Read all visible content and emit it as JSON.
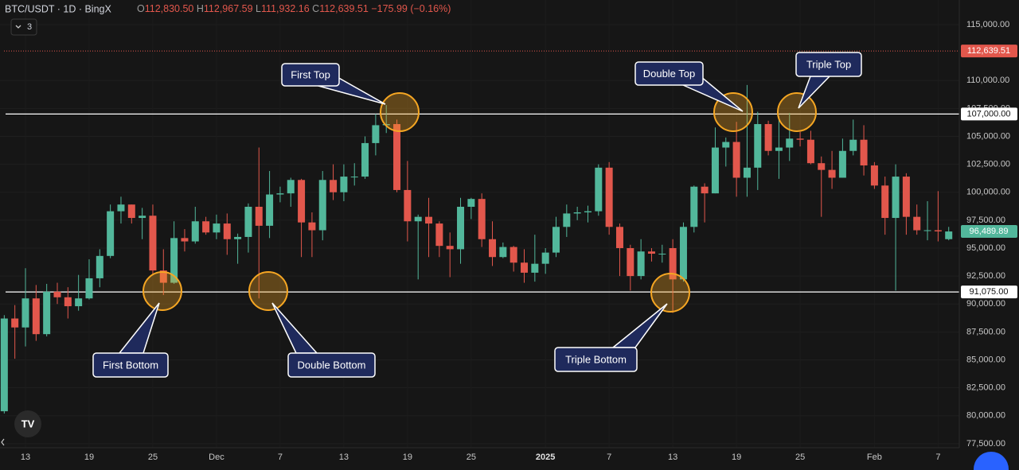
{
  "header": {
    "symbol": "BTC/USDT · 1D · BingX",
    "ohlc": [
      {
        "key": "O",
        "value": "112,830.50"
      },
      {
        "key": "H",
        "value": "112,967.59"
      },
      {
        "key": "L",
        "value": "111,932.16"
      },
      {
        "key": "C",
        "value": "112,639.51"
      }
    ],
    "change": "−175.99 (−0.16%)",
    "indicators": "3"
  },
  "chart_data": {
    "type": "candlestick",
    "up_color": "#52b79b",
    "down_color": "#e2574c",
    "categories": [
      null,
      null,
      "13",
      null,
      null,
      null,
      null,
      null,
      "19",
      null,
      null,
      null,
      null,
      null,
      "25",
      null,
      null,
      null,
      null,
      null,
      "Dec",
      null,
      null,
      null,
      null,
      null,
      "7",
      null,
      null,
      null,
      null,
      null,
      "13",
      null,
      null,
      null,
      null,
      null,
      "19",
      null,
      null,
      null,
      null,
      null,
      "25",
      null,
      null,
      null,
      null,
      null,
      null,
      "2025",
      null,
      null,
      null,
      null,
      null,
      "7",
      null,
      null,
      null,
      null,
      null,
      "13",
      null,
      null,
      null,
      null,
      null,
      "19",
      null,
      null,
      null,
      null,
      null,
      "25",
      null,
      null,
      null,
      null,
      null,
      null,
      "Feb",
      null,
      null,
      null,
      null,
      null,
      "7",
      null
    ],
    "open": [
      80400,
      88700,
      87900,
      90500,
      87300,
      91100,
      90600,
      89800,
      90500,
      92300,
      94300,
      98300,
      98900,
      97700,
      97900,
      93000,
      91900,
      95900,
      95600,
      97400,
      96400,
      97200,
      95800,
      96000,
      98700,
      97000,
      99800,
      99900,
      101100,
      97300,
      96600,
      101100,
      100000,
      101400,
      101400,
      104400,
      106000,
      106100,
      100200,
      97400,
      97800,
      97200,
      95200,
      94900,
      98700,
      99400,
      95800,
      94200,
      95100,
      93700,
      92800,
      93600,
      94600,
      96900,
      98100,
      98200,
      98300,
      102200,
      96900,
      95000,
      92500,
      94700,
      94500,
      95000,
      92200,
      96900,
      100500,
      99900,
      104000,
      104500,
      101300,
      102200,
      106100,
      103700,
      104000,
      104800,
      104700,
      102600,
      102000,
      101300,
      103700,
      104700,
      102400,
      100600,
      97700,
      101400,
      97800,
      96600,
      96600,
      95800
    ],
    "high": [
      89000,
      89900,
      93200,
      91700,
      91800,
      91900,
      91500,
      92600,
      94000,
      94900,
      98900,
      99600,
      98900,
      98600,
      98900,
      94900,
      97400,
      96700,
      98700,
      97800,
      98000,
      98100,
      96300,
      99000,
      104000,
      101900,
      100500,
      101300,
      101200,
      98200,
      101900,
      102500,
      102500,
      102600,
      105000,
      107000,
      107800,
      106500,
      102800,
      98000,
      99500,
      97400,
      96400,
      99500,
      99500,
      99900,
      97400,
      95500,
      95200,
      94900,
      96200,
      95000,
      97800,
      98900,
      98700,
      98800,
      102500,
      102700,
      97200,
      95300,
      95800,
      95000,
      95300,
      95800,
      97300,
      100600,
      100800,
      105800,
      104900,
      106300,
      109600,
      107200,
      106400,
      106800,
      107100,
      105400,
      105500,
      103200,
      103700,
      104800,
      106500,
      106000,
      102700,
      101400,
      102500,
      101700,
      98900,
      99200,
      100100,
      96900
    ],
    "low": [
      80200,
      85100,
      86200,
      86700,
      87100,
      90000,
      88700,
      89400,
      90400,
      91500,
      94100,
      97200,
      97200,
      95800,
      92600,
      90800,
      91800,
      94700,
      95400,
      96200,
      95800,
      94400,
      93600,
      94600,
      90500,
      95900,
      99100,
      98700,
      94200,
      94200,
      95700,
      99300,
      99200,
      100600,
      101200,
      103300,
      105300,
      100000,
      95600,
      92200,
      94200,
      94200,
      92400,
      93600,
      97600,
      95100,
      93400,
      94100,
      92900,
      91900,
      92000,
      92700,
      94200,
      96000,
      97500,
      97300,
      97900,
      96200,
      92500,
      91200,
      92200,
      93800,
      93700,
      89200,
      92000,
      96400,
      97300,
      99900,
      102300,
      99600,
      99600,
      100200,
      103300,
      101200,
      102800,
      104100,
      102500,
      97800,
      100300,
      101300,
      103300,
      101500,
      100300,
      96200,
      91200,
      96200,
      96200,
      95700,
      95600,
      95700
    ],
    "close": [
      88700,
      87900,
      90500,
      87300,
      91100,
      90600,
      89800,
      90500,
      92300,
      94300,
      98300,
      98900,
      97700,
      97900,
      93000,
      91900,
      95900,
      95600,
      97400,
      96400,
      97200,
      95800,
      96000,
      98700,
      97000,
      99800,
      99900,
      101100,
      97300,
      96600,
      101100,
      100000,
      101400,
      101400,
      104400,
      106000,
      106100,
      100200,
      97400,
      97800,
      97200,
      95200,
      94900,
      98700,
      99400,
      95800,
      94200,
      95100,
      93700,
      92800,
      93600,
      94600,
      96900,
      98100,
      98200,
      98300,
      102200,
      96900,
      95000,
      92500,
      94700,
      94500,
      94500,
      92200,
      96900,
      100500,
      99900,
      104000,
      104500,
      101300,
      102200,
      106100,
      103700,
      104000,
      104800,
      104700,
      102600,
      102000,
      101300,
      103700,
      104700,
      102400,
      100600,
      97700,
      101400,
      97800,
      96600,
      96600,
      96500,
      96489.89
    ],
    "last_close_label": "96,489.89",
    "ylim": [
      77135,
      117205
    ],
    "yticks": [
      {
        "value": 77500,
        "label": "77,500.00"
      },
      {
        "value": 80000,
        "label": "80,000.00"
      },
      {
        "value": 82500,
        "label": "82,500.00"
      },
      {
        "value": 85000,
        "label": "85,000.00"
      },
      {
        "value": 87500,
        "label": "87,500.00"
      },
      {
        "value": 90000,
        "label": "90,000.00"
      },
      {
        "value": 92500,
        "label": "92,500.00"
      },
      {
        "value": 95000,
        "label": "95,000.00"
      },
      {
        "value": 97500,
        "label": "97,500.00"
      },
      {
        "value": 100000,
        "label": "100,000.00"
      },
      {
        "value": 102500,
        "label": "102,500.00"
      },
      {
        "value": 105000,
        "label": "105,000.00"
      },
      {
        "value": 107500,
        "label": "107,500.00"
      },
      {
        "value": 110000,
        "label": "110,000.00"
      },
      {
        "value": 115000,
        "label": "115,000.00"
      }
    ],
    "horizontal_lines": [
      {
        "value": 107000,
        "label": "107,000.00"
      },
      {
        "value": 91075,
        "label": "91,075.00"
      }
    ],
    "current_price": {
      "value": 112639.51,
      "label": "112,639.51"
    },
    "annotations": [
      "First Top",
      "Double Top",
      "Triple Top",
      "First Bottom",
      "Double Bottom",
      "Triple Bottom"
    ]
  }
}
